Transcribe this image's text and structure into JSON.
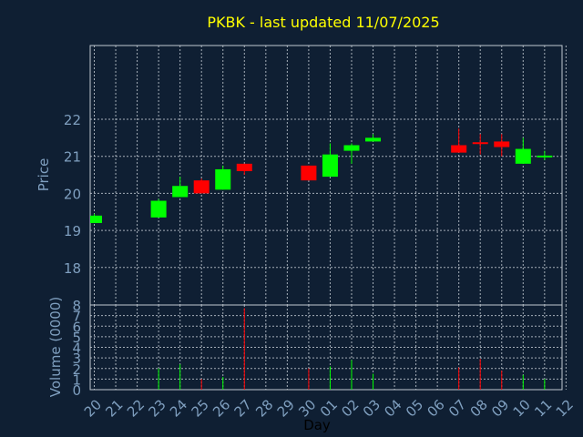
{
  "chart_data": {
    "type": "candlestick",
    "title": "PKBK - last updated 11/07/2025",
    "xlabel": "Day",
    "ylabel": "Price",
    "volume_label": "Volume (0000)",
    "ylim": [
      17,
      24
    ],
    "volume_lim": [
      0,
      8
    ],
    "price_ticks": [
      "18",
      "19",
      "20",
      "21",
      "22"
    ],
    "volume_ticks": [
      "0",
      "1",
      "2",
      "3",
      "4",
      "5",
      "6",
      "7",
      "8"
    ],
    "x_ticks": [
      "20",
      "21",
      "22",
      "23",
      "24",
      "25",
      "26",
      "27",
      "28",
      "29",
      "30",
      "01",
      "02",
      "03",
      "04",
      "05",
      "06",
      "07",
      "08",
      "09",
      "10",
      "11",
      "12"
    ],
    "grid": true,
    "colors": {
      "up": "#00ff00",
      "down": "#ff0000",
      "background": "#0f1f33",
      "title": "#ffff00",
      "axis_text": "#7f9fbf"
    },
    "candles": [
      {
        "day": "20",
        "open": 19.2,
        "high": 19.45,
        "low": 19.2,
        "close": 19.4,
        "volume": 0.0
      },
      {
        "day": "23",
        "open": 19.35,
        "high": 19.85,
        "low": 19.35,
        "close": 19.8,
        "volume": 2.0
      },
      {
        "day": "24",
        "open": 19.9,
        "high": 20.45,
        "low": 19.9,
        "close": 20.2,
        "volume": 2.4
      },
      {
        "day": "25",
        "open": 20.35,
        "high": 20.4,
        "low": 20.0,
        "close": 20.0,
        "volume": 1.0
      },
      {
        "day": "26",
        "open": 20.1,
        "high": 20.75,
        "low": 20.1,
        "close": 20.65,
        "volume": 1.2
      },
      {
        "day": "27",
        "open": 20.8,
        "high": 20.8,
        "low": 20.5,
        "close": 20.6,
        "volume": 7.7
      },
      {
        "day": "30",
        "open": 20.75,
        "high": 20.75,
        "low": 20.35,
        "close": 20.35,
        "volume": 2.0
      },
      {
        "day": "01",
        "open": 20.45,
        "high": 21.35,
        "low": 20.45,
        "close": 21.05,
        "volume": 2.2
      },
      {
        "day": "02",
        "open": 21.15,
        "high": 21.35,
        "low": 20.8,
        "close": 21.3,
        "volume": 2.8
      },
      {
        "day": "03",
        "open": 21.4,
        "high": 21.6,
        "low": 21.4,
        "close": 21.5,
        "volume": 1.5
      },
      {
        "day": "07",
        "open": 21.3,
        "high": 21.75,
        "low": 21.1,
        "close": 21.1,
        "volume": 2.1
      },
      {
        "day": "08",
        "open": 21.38,
        "high": 21.6,
        "low": 21.05,
        "close": 21.34,
        "volume": 2.9
      },
      {
        "day": "09",
        "open": 21.4,
        "high": 21.6,
        "low": 21.0,
        "close": 21.25,
        "volume": 1.8
      },
      {
        "day": "10",
        "open": 20.8,
        "high": 21.5,
        "low": 20.8,
        "close": 21.2,
        "volume": 1.4
      },
      {
        "day": "11",
        "open": 20.98,
        "high": 21.15,
        "low": 20.9,
        "close": 21.02,
        "volume": 1.0
      }
    ]
  }
}
